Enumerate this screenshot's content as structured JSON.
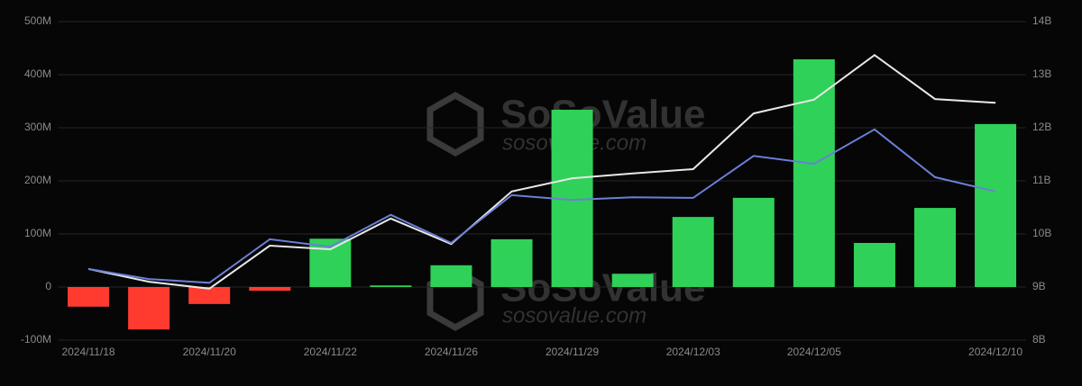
{
  "chart_data": {
    "type": "bar-line",
    "categories": [
      "2024/11/18",
      null,
      "2024/11/20",
      null,
      "2024/11/22",
      null,
      "2024/11/26",
      null,
      "2024/11/29",
      null,
      "2024/12/03",
      null,
      "2024/12/05",
      null,
      null,
      "2024/12/10"
    ],
    "values": [
      -37000000,
      -80000000,
      -32000000,
      -7000000,
      91000000,
      3000000,
      41000000,
      90000000,
      334000000,
      25000000,
      132000000,
      168000000,
      429000000,
      83000000,
      149000000,
      307000000
    ],
    "positive_color": "#30d158",
    "negative_color": "#ff3b30",
    "series": [
      {
        "color": "#e8e8e8",
        "axis": "y2",
        "values": [
          9340000000,
          9100000000,
          8970000000,
          9780000000,
          9710000000,
          10290000000,
          9810000000,
          10800000000,
          11050000000,
          11140000000,
          11220000000,
          12270000000,
          12530000000,
          13370000000,
          12540000000,
          12470000000
        ]
      },
      {
        "color": "#6b7fd7",
        "axis": "y2",
        "values": [
          9340000000,
          9150000000,
          9080000000,
          9900000000,
          9760000000,
          10360000000,
          9830000000,
          10730000000,
          10640000000,
          10690000000,
          10680000000,
          11470000000,
          11320000000,
          11970000000,
          11070000000,
          10800000000
        ]
      }
    ],
    "ylim": [
      -100000000,
      500000000
    ],
    "yticks": [
      {
        "value": -100000000,
        "label": "-100M"
      },
      0,
      {
        "value": 100000000,
        "label": "100M"
      },
      {
        "value": 200000000,
        "label": "200M"
      },
      {
        "value": 300000000,
        "label": "300M"
      },
      {
        "value": 400000000,
        "label": "400M"
      },
      {
        "value": 500000000,
        "label": "500M"
      }
    ],
    "y2lim": [
      8000000000,
      14000000000
    ],
    "y2ticks": [
      {
        "value": 8000000000,
        "label": "8B"
      },
      {
        "value": 9000000000,
        "label": "9B"
      },
      {
        "value": 10000000000,
        "label": "10B"
      },
      {
        "value": 11000000000,
        "label": "11B"
      },
      {
        "value": 12000000000,
        "label": "12B"
      },
      {
        "value": 13000000000,
        "label": "13B"
      },
      {
        "value": 14000000000,
        "label": "14B"
      }
    ],
    "grid": true,
    "watermark": {
      "brand": "SoSoValue",
      "site": "sosovalue.com"
    }
  }
}
